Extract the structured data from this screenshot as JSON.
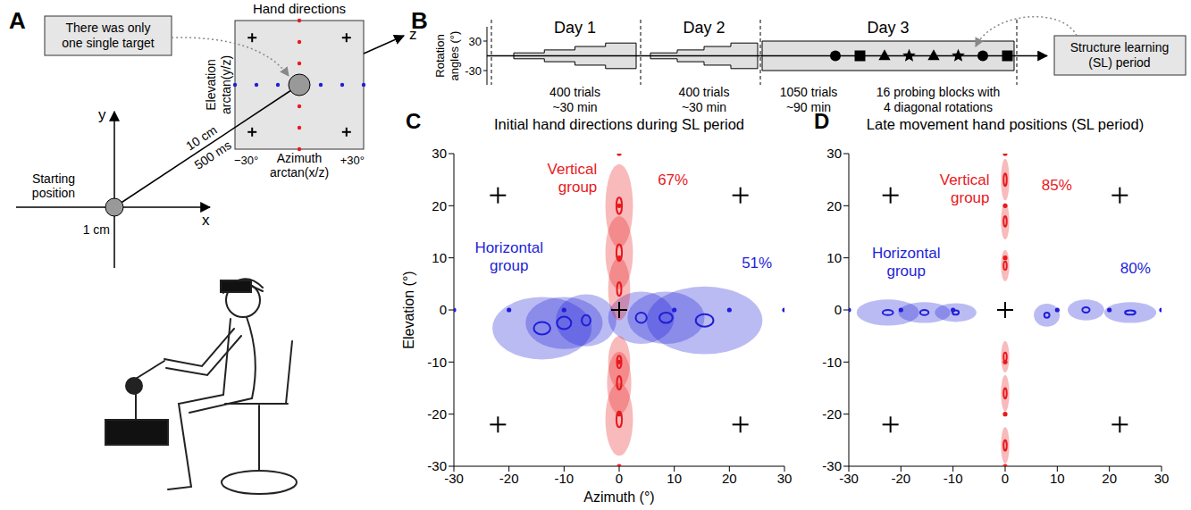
{
  "panel_a": {
    "letter": "A",
    "title": "Hand directions",
    "callout": "There was only one single target",
    "elevation_label": [
      "Elevation",
      "arctan(y/z)"
    ],
    "azimuth_label": [
      "Azimuth",
      "arctan(x/z)"
    ],
    "azimuth_ticks": [
      "−30°",
      "+30°"
    ],
    "axis_names": {
      "x": "x",
      "y": "y",
      "z": "z"
    },
    "reach": [
      "10 cm",
      "500 ms"
    ],
    "start_label": "Starting position",
    "start_size": "1 cm"
  },
  "panel_b": {
    "letter": "B",
    "y_label": "Rotation angles (°)",
    "yticks": [
      30,
      -30
    ],
    "days": [
      {
        "label": "Day 1",
        "rotation_steps": [
          6,
          12,
          19,
          26
        ],
        "notes": [
          "400 trials",
          "~30 min"
        ]
      },
      {
        "label": "Day 2",
        "rotation_steps": [
          6,
          12,
          19,
          26
        ],
        "notes": [
          "400 trials",
          "~30 min"
        ]
      },
      {
        "label": "Day 3",
        "rotation_steps": [
          30
        ],
        "notes": [
          "1050 trials",
          "~90 min"
        ],
        "probe_text": "16 probing blocks with 4 diagonal rotations",
        "probe_markers": [
          "circle",
          "square",
          "triangle",
          "star",
          "triangle",
          "star",
          "circle",
          "square"
        ]
      }
    ],
    "callout": "Structure learning (SL) period"
  },
  "chart_data": [
    {
      "type": "scatter",
      "panel": "C",
      "title": "Initial hand directions during SL period",
      "x_label": "Azimuth (°)",
      "y_label": "Elevation (°)",
      "xlim": [
        -30,
        30
      ],
      "ylim": [
        -30,
        30
      ],
      "xticks": [
        -30,
        -20,
        -10,
        0,
        10,
        20,
        30
      ],
      "yticks": [
        -30,
        -20,
        -10,
        0,
        10,
        20,
        30
      ],
      "series": [
        {
          "name": "Vertical group",
          "color": "#e8191e",
          "share_label": "67%",
          "marker": "circle",
          "targets": {
            "x": [
              0,
              0,
              0,
              0,
              0,
              0
            ],
            "y": [
              30,
              20,
              10,
              -10,
              -20,
              -30
            ]
          },
          "ellipses": [
            {
              "x": 0,
              "y": 20,
              "rx": 2.5,
              "ry": 8,
              "ci_rx": 0.5,
              "ci_ry": 1.6
            },
            {
              "x": 0,
              "y": 11,
              "rx": 2.5,
              "ry": 7,
              "ci_rx": 0.5,
              "ci_ry": 1.6
            },
            {
              "x": 0,
              "y": 4,
              "rx": 2,
              "ry": 6,
              "ci_rx": 0.4,
              "ci_ry": 1.3
            },
            {
              "x": 0,
              "y": -10,
              "rx": 2,
              "ry": 5,
              "ci_rx": 0.4,
              "ci_ry": 1.2
            },
            {
              "x": 0,
              "y": -14,
              "rx": 2.2,
              "ry": 6,
              "ci_rx": 0.4,
              "ci_ry": 1.3
            },
            {
              "x": 0,
              "y": -21,
              "rx": 2.5,
              "ry": 7,
              "ci_rx": 0.5,
              "ci_ry": 1.5
            }
          ]
        },
        {
          "name": "Horizontal group",
          "color": "#1f1fd8",
          "share_label": "51%",
          "marker": "circle",
          "targets": {
            "x": [
              -30,
              -20,
              -10,
              10,
              20,
              30
            ],
            "y": [
              0,
              0,
              0,
              0,
              0,
              0
            ]
          },
          "ellipses": [
            {
              "x": -14,
              "y": -3.5,
              "rx": 9,
              "ry": 6,
              "ci_rx": 1.5,
              "ci_ry": 1.2
            },
            {
              "x": -10,
              "y": -2.5,
              "rx": 7,
              "ry": 5,
              "ci_rx": 1.3,
              "ci_ry": 1.2
            },
            {
              "x": -6,
              "y": -2,
              "rx": 5.5,
              "ry": 5,
              "ci_rx": 0.8,
              "ci_ry": 1
            },
            {
              "x": 4,
              "y": -1.5,
              "rx": 6,
              "ry": 5,
              "ci_rx": 1,
              "ci_ry": 1
            },
            {
              "x": 8.5,
              "y": -1.5,
              "rx": 7,
              "ry": 5,
              "ci_rx": 1.2,
              "ci_ry": 1
            },
            {
              "x": 15.5,
              "y": -2,
              "rx": 10.5,
              "ry": 6.5,
              "ci_rx": 1.6,
              "ci_ry": 1.2
            }
          ]
        }
      ],
      "crosses": {
        "marker": "cross",
        "color": "#000000",
        "x": [
          -22,
          22,
          -22,
          22,
          0
        ],
        "y": [
          22,
          22,
          -22,
          -22,
          0
        ]
      }
    },
    {
      "type": "scatter",
      "panel": "D",
      "title": "Late movement hand positions (SL period)",
      "xlim": [
        -30,
        30
      ],
      "ylim": [
        -30,
        30
      ],
      "xticks": [
        -30,
        -20,
        -10,
        0,
        10,
        20,
        30
      ],
      "yticks": [
        -30,
        -20,
        -10,
        0,
        10,
        20,
        30
      ],
      "series": [
        {
          "name": "Vertical group",
          "color": "#e8191e",
          "share_label": "85%",
          "marker": "circle",
          "targets": {
            "x": [
              0,
              0,
              0,
              0,
              0,
              0
            ],
            "y": [
              30,
              20,
              10,
              -10,
              -20,
              -30
            ]
          },
          "ellipses": [
            {
              "x": 0,
              "y": 25,
              "rx": 0.8,
              "ry": 4,
              "ci_rx": 0.3,
              "ci_ry": 1.2
            },
            {
              "x": 0,
              "y": 17,
              "rx": 0.8,
              "ry": 3.5,
              "ci_rx": 0.3,
              "ci_ry": 1
            },
            {
              "x": 0,
              "y": 8.5,
              "rx": 0.8,
              "ry": 3,
              "ci_rx": 0.3,
              "ci_ry": 0.8
            },
            {
              "x": 0,
              "y": -9,
              "rx": 0.8,
              "ry": 3,
              "ci_rx": 0.3,
              "ci_ry": 0.8
            },
            {
              "x": 0,
              "y": -16,
              "rx": 0.8,
              "ry": 3.5,
              "ci_rx": 0.3,
              "ci_ry": 1
            },
            {
              "x": 0,
              "y": -26,
              "rx": 0.8,
              "ry": 3.5,
              "ci_rx": 0.3,
              "ci_ry": 1
            }
          ]
        },
        {
          "name": "Horizontal group",
          "color": "#1f1fd8",
          "share_label": "80%",
          "marker": "circle",
          "targets": {
            "x": [
              -30,
              -20,
              -10,
              10,
              20,
              30
            ],
            "y": [
              0,
              0,
              0,
              0,
              0,
              0
            ]
          },
          "ellipses": [
            {
              "x": -22.5,
              "y": -0.5,
              "rx": 6,
              "ry": 2.5,
              "ci_rx": 1,
              "ci_ry": 0.5
            },
            {
              "x": -15.5,
              "y": -0.5,
              "rx": 5,
              "ry": 2,
              "ci_rx": 0.8,
              "ci_ry": 0.5
            },
            {
              "x": -9.5,
              "y": -0.5,
              "rx": 4,
              "ry": 1.8,
              "ci_rx": 0.6,
              "ci_ry": 0.4
            },
            {
              "x": 8,
              "y": -1,
              "rx": 2.5,
              "ry": 2.2,
              "ci_rx": 0.5,
              "ci_ry": 0.5
            },
            {
              "x": 15.5,
              "y": 0,
              "rx": 3.5,
              "ry": 2,
              "ci_rx": 0.7,
              "ci_ry": 0.5
            },
            {
              "x": 24,
              "y": -0.5,
              "rx": 5,
              "ry": 2,
              "ci_rx": 1,
              "ci_ry": 0.4
            }
          ]
        }
      ],
      "crosses": {
        "marker": "cross",
        "color": "#000000",
        "x": [
          -22,
          22,
          -22,
          22,
          0
        ],
        "y": [
          22,
          22,
          -22,
          -22,
          0
        ]
      }
    }
  ]
}
